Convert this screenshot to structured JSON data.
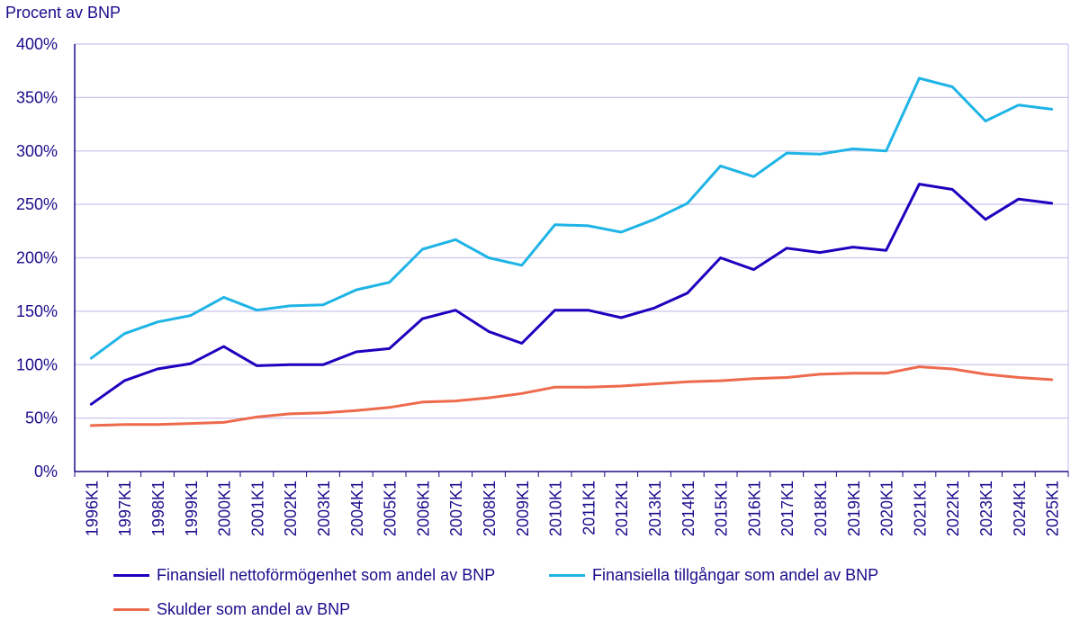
{
  "chart_data": {
    "type": "line",
    "ylabel": "Procent av BNP",
    "ylim": [
      0,
      400
    ],
    "yticks": [
      "0%",
      "50%",
      "100%",
      "150%",
      "200%",
      "250%",
      "300%",
      "350%",
      "400%"
    ],
    "grid": true,
    "legend_placement": "bottom",
    "categories": [
      "1996K1",
      "1997K1",
      "1998K1",
      "1999K1",
      "2000K1",
      "2001K1",
      "2002K1",
      "2003K1",
      "2004K1",
      "2005K1",
      "2006K1",
      "2007K1",
      "2008K1",
      "2009K1",
      "2010K1",
      "2011K1",
      "2012K1",
      "2013K1",
      "2014K1",
      "2015K1",
      "2016K1",
      "2017K1",
      "2018K1",
      "2019K1",
      "2020K1",
      "2021K1",
      "2022K1",
      "2023K1",
      "2024K1",
      "2025K1"
    ],
    "series": [
      {
        "name": "Finansiell nettoförmögenhet som andel av BNP",
        "color": "#1e00be",
        "values": [
          63,
          85,
          96,
          101,
          117,
          99,
          100,
          100,
          112,
          115,
          143,
          151,
          131,
          120,
          151,
          151,
          144,
          153,
          167,
          200,
          189,
          209,
          205,
          210,
          207,
          269,
          264,
          236,
          255,
          251
        ]
      },
      {
        "name": "Finansiella tillgångar som andel av BNP",
        "color": "#1fb4e6",
        "values": [
          106,
          129,
          140,
          146,
          163,
          151,
          155,
          156,
          170,
          177,
          208,
          217,
          200,
          193,
          231,
          230,
          224,
          236,
          251,
          286,
          276,
          298,
          297,
          302,
          300,
          368,
          360,
          328,
          343,
          339
        ]
      },
      {
        "name": "Skulder som andel av BNP",
        "color": "#ee6a4c",
        "values": [
          43,
          44,
          44,
          45,
          46,
          51,
          54,
          55,
          57,
          60,
          65,
          66,
          69,
          73,
          79,
          79,
          80,
          82,
          84,
          85,
          87,
          88,
          91,
          92,
          92,
          98,
          96,
          91,
          88,
          86
        ]
      }
    ]
  }
}
